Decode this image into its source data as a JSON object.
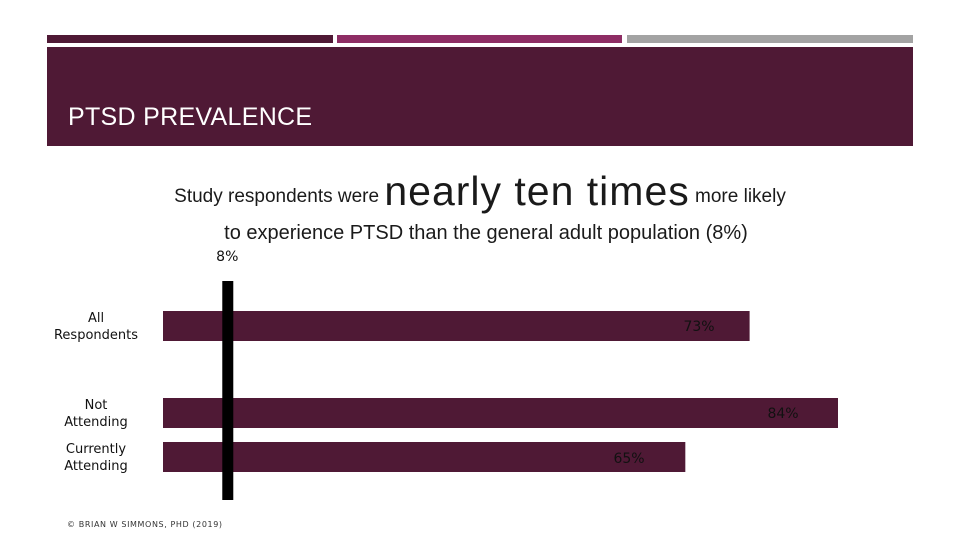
{
  "header": {
    "title": "PTSD PREVALENCE"
  },
  "headline": {
    "prefix": "Study respondents were",
    "emphasis": "nearly ten times",
    "suffix": "more likely",
    "line2": "to experience PTSD than the general adult population (8%)"
  },
  "footer": {
    "credit": "© BRIAN W SIMMONS, PHD (2019)"
  },
  "colors": {
    "bar": "#4f1935",
    "header_bg": "#4f1935",
    "accent_plum": "#4f1935",
    "accent_magenta": "#8e2d64",
    "accent_gray": "#a3a3a3",
    "reference_line": "#000000"
  },
  "chart_data": {
    "type": "bar",
    "orientation": "horizontal",
    "categories": [
      [
        "All",
        "Respondents"
      ],
      [
        "Not",
        "Attending"
      ],
      [
        "Currently",
        "Attending"
      ]
    ],
    "values": [
      73,
      84,
      65
    ],
    "value_labels": [
      "73%",
      "84%",
      "65%"
    ],
    "reference_line": {
      "value": 8,
      "label": "8%"
    },
    "xlim": [
      0,
      84
    ],
    "grid": false,
    "legend": "none"
  }
}
